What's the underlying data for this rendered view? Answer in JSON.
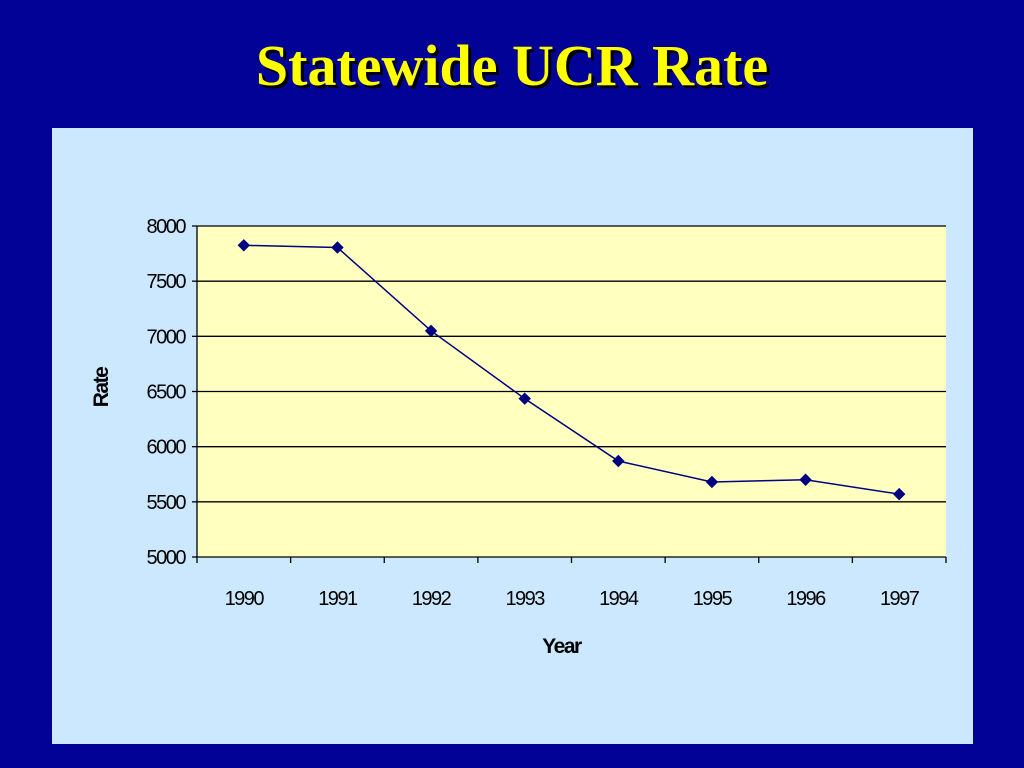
{
  "slide": {
    "title": "Statewide UCR Rate"
  },
  "colors": {
    "background": "#020396",
    "title": "#FFFF00",
    "chart_area": "#CCE8FF",
    "plot_area": "#FFFFC0",
    "series_line": "#000080",
    "gridline": "#000000"
  },
  "chart_data": {
    "type": "line",
    "title": "",
    "xlabel": "Year",
    "ylabel": "Rate",
    "categories": [
      "1990",
      "1991",
      "1992",
      "1993",
      "1994",
      "1995",
      "1996",
      "1997"
    ],
    "y_ticks": [
      "5000",
      "5500",
      "6000",
      "6500",
      "7000",
      "7500",
      "8000"
    ],
    "ylim": [
      5000,
      8000
    ],
    "grid": true,
    "legend": "none",
    "marker": "diamond",
    "series": [
      {
        "values": [
          7825,
          7805,
          7050,
          6435,
          5870,
          5680,
          5700,
          5570
        ]
      }
    ]
  }
}
